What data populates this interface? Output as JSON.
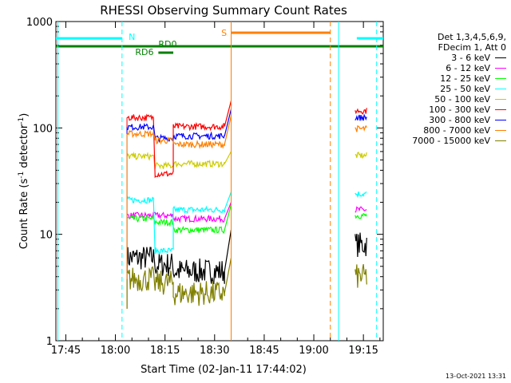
{
  "chart_data": {
    "type": "line",
    "title": "RHESSI Observing Summary Count Rates",
    "xlabel": "Start Time (02-Jan-11 17:44:02)",
    "ylabel_parts": [
      "Count Rate (s",
      "-1",
      " detector",
      "-1",
      ")"
    ],
    "yscale": "log",
    "ylim": [
      1,
      1000
    ],
    "xlim_minutes": [
      -2,
      97
    ],
    "x_ticks": [
      {
        "min": 1,
        "label": "17:45"
      },
      {
        "min": 16,
        "label": "18:00"
      },
      {
        "min": 31,
        "label": "18:15"
      },
      {
        "min": 46,
        "label": "18:30"
      },
      {
        "min": 61,
        "label": "18:45"
      },
      {
        "min": 76,
        "label": "19:00"
      },
      {
        "min": 91,
        "label": "19:15"
      }
    ],
    "y_ticks": [
      {
        "value": 1,
        "label": "1"
      },
      {
        "value": 10,
        "label": "10"
      },
      {
        "value": 100,
        "label": "100"
      },
      {
        "value": 1000,
        "label": "1000"
      }
    ],
    "legend_header": [
      "Det 1,3,4,5,6,9,",
      "FDecim 1, Att 0"
    ],
    "series": [
      {
        "name": "3 - 6 keV",
        "color": "#000000",
        "seg": [
          [
            19.5,
            27.5,
            6.0
          ],
          [
            28,
            33.5,
            5.2
          ],
          [
            33.5,
            49,
            4.5
          ]
        ],
        "late": 11,
        "seg2": [
          [
            88.5,
            92,
            8
          ]
        ]
      },
      {
        "name": "6 - 12 keV",
        "color": "#ff00ff",
        "seg": [
          [
            19.5,
            27.5,
            15
          ],
          [
            28,
            33.5,
            15
          ],
          [
            33.5,
            49,
            14
          ]
        ],
        "late": 20,
        "seg2": [
          [
            88.5,
            92,
            17
          ]
        ]
      },
      {
        "name": "12 - 25 keV",
        "color": "#00ff00",
        "seg": [
          [
            19.5,
            27.5,
            14
          ],
          [
            28,
            33.5,
            13
          ],
          [
            33.5,
            49,
            11
          ]
        ],
        "late": 19,
        "seg2": [
          [
            88.5,
            92,
            15
          ]
        ]
      },
      {
        "name": "25 - 50 keV",
        "color": "#00ffff",
        "seg": [
          [
            19.5,
            27.5,
            21
          ],
          [
            28,
            33.5,
            7
          ],
          [
            33.5,
            49,
            17
          ]
        ],
        "late": 25,
        "seg2": [
          [
            88.5,
            92,
            24
          ]
        ]
      },
      {
        "name": "50 - 100 keV",
        "color": "#cccc00",
        "seg": [
          [
            19.5,
            27.5,
            54
          ],
          [
            28,
            33.5,
            44
          ],
          [
            33.5,
            49,
            46
          ]
        ],
        "late": 60,
        "seg2": [
          [
            88.5,
            92,
            55
          ]
        ]
      },
      {
        "name": "100 - 300 keV",
        "color": "#ff0000",
        "seg": [
          [
            19.5,
            27.5,
            125
          ],
          [
            28,
            33.5,
            37
          ],
          [
            33.5,
            49,
            103
          ]
        ],
        "late": 180,
        "seg2": [
          [
            88.5,
            92,
            145
          ]
        ]
      },
      {
        "name": "300 - 800 keV",
        "color": "#0000ff",
        "seg": [
          [
            19.5,
            27.5,
            102
          ],
          [
            28,
            33.5,
            80
          ],
          [
            33.5,
            49,
            84
          ]
        ],
        "late": 150,
        "seg2": [
          [
            88.5,
            92,
            125
          ]
        ]
      },
      {
        "name": "800 - 7000 keV",
        "color": "#ff8000",
        "seg": [
          [
            19.5,
            27.5,
            88
          ],
          [
            28,
            33.5,
            76
          ],
          [
            33.5,
            49,
            70
          ]
        ],
        "late": 130,
        "seg2": [
          [
            88.5,
            92,
            98
          ]
        ]
      },
      {
        "name": "7000 - 15000 keV",
        "color": "#808000",
        "seg": [
          [
            19.5,
            27.5,
            3.8
          ],
          [
            28,
            33.5,
            3.5
          ],
          [
            33.5,
            49,
            2.8
          ]
        ],
        "late": 6,
        "seg2": [
          [
            88.5,
            92,
            4
          ]
        ]
      }
    ],
    "annotations": [
      {
        "text": "N",
        "color": "#00ffff"
      },
      {
        "text": "RD0",
        "color": "#008000"
      },
      {
        "text": "RD6",
        "color": "#008000"
      },
      {
        "text": "S",
        "color": "#ff8000"
      }
    ]
  },
  "footer": "13-Oct-2021 13:31"
}
